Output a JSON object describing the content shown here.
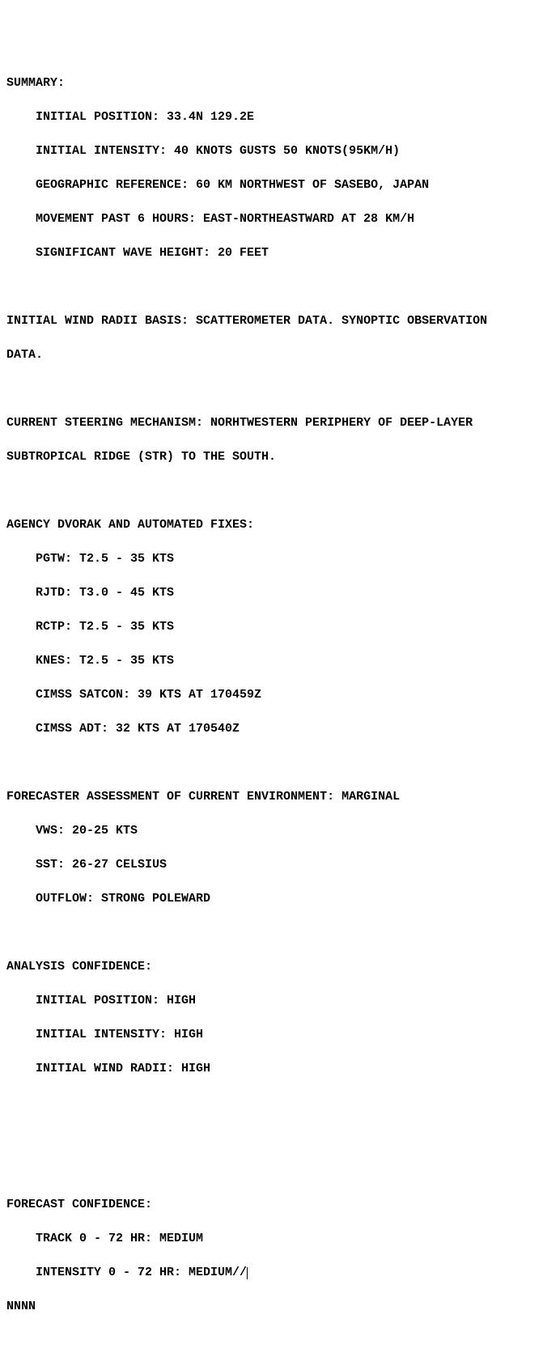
{
  "summary": {
    "header": "SUMMARY:",
    "initial_position": "INITIAL POSITION: 33.4N 129.2E",
    "initial_intensity": "INITIAL INTENSITY: 40 KNOTS GUSTS 50 KNOTS(95KM/H)",
    "geographic_reference": "GEOGRAPHIC REFERENCE: 60 KM NORTHWEST OF SASEBO, JAPAN",
    "movement": "MOVEMENT PAST 6 HOURS: EAST-NORTHEASTWARD AT 28 KM/H",
    "wave_height": "SIGNIFICANT WAVE HEIGHT: 20 FEET"
  },
  "wind_radii_basis": {
    "line1": "INITIAL WIND RADII BASIS: SCATTEROMETER DATA. SYNOPTIC OBSERVATION",
    "line2": "DATA."
  },
  "steering": {
    "line1": "CURRENT STEERING MECHANISM: NORHTWESTERN PERIPHERY OF DEEP-LAYER",
    "line2": "SUBTROPICAL RIDGE (STR) TO THE SOUTH."
  },
  "dvorak": {
    "header": "AGENCY DVORAK AND AUTOMATED FIXES:",
    "pgtw": "PGTW: T2.5 - 35 KTS",
    "rjtd": "RJTD: T3.0 - 45 KTS",
    "rctp": "RCTP: T2.5 - 35 KTS",
    "knes": "KNES: T2.5 - 35 KTS",
    "satcon": "CIMSS SATCON: 39 KTS AT 170459Z",
    "adt": "CIMSS ADT: 32 KTS AT 170540Z"
  },
  "forecaster": {
    "header": "FORECASTER ASSESSMENT OF CURRENT ENVIRONMENT: MARGINAL",
    "vws": "VWS: 20-25 KTS",
    "sst": "SST: 26-27 CELSIUS",
    "outflow": "OUTFLOW: STRONG POLEWARD"
  },
  "analysis_confidence": {
    "header": "ANALYSIS CONFIDENCE:",
    "position": "INITIAL POSITION: HIGH",
    "intensity": "INITIAL INTENSITY: HIGH",
    "wind_radii": "INITIAL WIND RADII: HIGH"
  },
  "forecast_confidence": {
    "header": "FORECAST CONFIDENCE:",
    "track": "TRACK 0 - 72 HR: MEDIUM",
    "intensity": "INTENSITY 0 - 72 HR: MEDIUM//"
  },
  "terminator": "NNNN"
}
